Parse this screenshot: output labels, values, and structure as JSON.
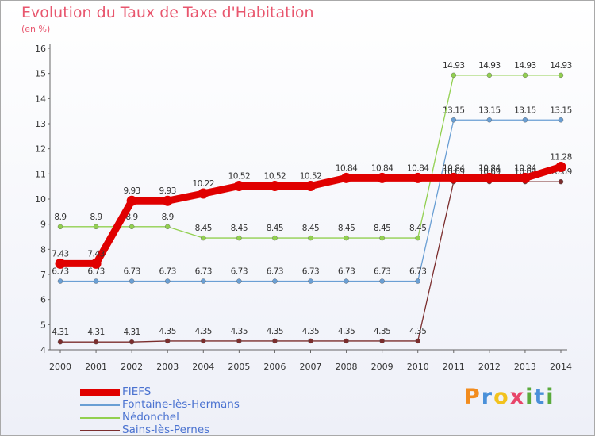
{
  "page": {
    "title": "Evolution du Taux de Taxe d'Habitation",
    "subtitle": "(en %)"
  },
  "logo": {
    "letters": [
      "P",
      "r",
      "o",
      "x",
      "i",
      "t",
      "i"
    ],
    "colors": [
      "#f28c1e",
      "#4a90d9",
      "#f2c21e",
      "#e8456a",
      "#5aaa3c",
      "#4a90d9",
      "#5aaa3c"
    ]
  },
  "chart_data": {
    "type": "line",
    "title": "Evolution du Taux de Taxe d'Habitation",
    "ylabel": "(en %)",
    "x": [
      "2000",
      "2001",
      "2002",
      "2003",
      "2004",
      "2005",
      "2006",
      "2007",
      "2008",
      "2009",
      "2010",
      "2011",
      "2012",
      "2013",
      "2014"
    ],
    "yticks": [
      "4",
      "5",
      "6",
      "7",
      "8",
      "9",
      "10",
      "11",
      "12",
      "13",
      "14",
      "15",
      "16"
    ],
    "ylim": [
      4,
      16
    ],
    "grid": false,
    "legend_position": "bottom-left",
    "series": [
      {
        "name": "Sains-lès-Pernes",
        "color": "#7b2d2d",
        "values": [
          4.31,
          4.31,
          4.31,
          4.35,
          4.35,
          4.35,
          4.35,
          4.35,
          4.35,
          4.35,
          4.35,
          10.69,
          10.69,
          10.69,
          10.69
        ],
        "labels": [
          "4.31",
          "4.31",
          "4.31",
          "4.35",
          "4.35",
          "4.35",
          "4.35",
          "4.35",
          "4.35",
          "4.35",
          "4.35",
          "10.69",
          "10.69",
          "10.69",
          "10.69"
        ]
      },
      {
        "name": "Fontaine-lès-Hermans",
        "color": "#6a9fd4",
        "values": [
          6.73,
          6.73,
          6.73,
          6.73,
          6.73,
          6.73,
          6.73,
          6.73,
          6.73,
          6.73,
          6.73,
          13.15,
          13.15,
          13.15,
          13.15
        ],
        "labels": [
          "6.73",
          "6.73",
          "6.73",
          "6.73",
          "6.73",
          "6.73",
          "6.73",
          "6.73",
          "6.73",
          "6.73",
          "6.73",
          "13.15",
          "13.15",
          "13.15",
          "13.15"
        ]
      },
      {
        "name": "Nédonchel",
        "color": "#92d050",
        "values": [
          8.9,
          8.9,
          8.9,
          8.9,
          8.45,
          8.45,
          8.45,
          8.45,
          8.45,
          8.45,
          8.45,
          14.93,
          14.93,
          14.93,
          14.93
        ],
        "labels": [
          "8.9",
          "8.9",
          "8.9",
          "8.9",
          "8.45",
          "8.45",
          "8.45",
          "8.45",
          "8.45",
          "8.45",
          "8.45",
          "14.93",
          "14.93",
          "14.93",
          "14.93"
        ]
      },
      {
        "name": "FIEFS",
        "color": "#e00000",
        "values": [
          7.43,
          7.43,
          9.93,
          9.93,
          10.22,
          10.52,
          10.52,
          10.52,
          10.84,
          10.84,
          10.84,
          10.84,
          10.84,
          10.84,
          11.28
        ],
        "labels": [
          "7.43",
          "7.43",
          "9.93",
          "9.93",
          "10.22",
          "10.52",
          "10.52",
          "10.52",
          "10.84",
          "10.84",
          "10.84",
          "10.84",
          "10.84",
          "10.84",
          "11.28"
        ]
      }
    ],
    "legend_order": [
      "FIEFS",
      "Fontaine-lès-Hermans",
      "Nédonchel",
      "Sains-lès-Pernes"
    ]
  }
}
